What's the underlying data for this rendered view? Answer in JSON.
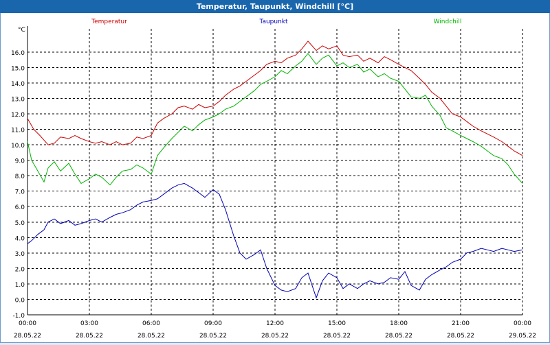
{
  "window": {
    "title": "Temperatur, Taupunkt, Windchill [°C]"
  },
  "chart_data": {
    "type": "line",
    "title": "Temperatur, Taupunkt, Windchill [°C]",
    "ylabel": "°C",
    "ylim": [
      -1.0,
      17.5
    ],
    "xlim": [
      0,
      24
    ],
    "yticks": [
      "-1.0",
      "0.0",
      "1.0",
      "2.0",
      "3.0",
      "4.0",
      "5.0",
      "6.0",
      "7.0",
      "8.0",
      "9.0",
      "10.0",
      "11.0",
      "12.0",
      "13.0",
      "14.0",
      "15.0",
      "16.0"
    ],
    "xticks": [
      {
        "time": "00:00",
        "date": "28.05.22"
      },
      {
        "time": "03:00",
        "date": "28.05.22"
      },
      {
        "time": "06:00",
        "date": "28.05.22"
      },
      {
        "time": "09:00",
        "date": "28.05.22"
      },
      {
        "time": "12:00",
        "date": "28.05.22"
      },
      {
        "time": "15:00",
        "date": "28.05.22"
      },
      {
        "time": "18:00",
        "date": "28.05.22"
      },
      {
        "time": "21:00",
        "date": "28.05.22"
      },
      {
        "time": "00:00",
        "date": "29.05.22"
      }
    ],
    "grid": true,
    "legend_position": "top",
    "series": [
      {
        "name": "Temperatur",
        "color": "#cc0000",
        "x": [
          0,
          0.3,
          0.6,
          0.8,
          1.0,
          1.3,
          1.6,
          2.0,
          2.3,
          2.6,
          3.0,
          3.3,
          3.6,
          4.0,
          4.3,
          4.6,
          5.0,
          5.3,
          5.6,
          6.0,
          6.3,
          6.6,
          7.0,
          7.3,
          7.6,
          8.0,
          8.3,
          8.6,
          9.0,
          9.3,
          9.6,
          10.0,
          10.3,
          10.6,
          11.0,
          11.3,
          11.6,
          12.0,
          12.3,
          12.6,
          13.0,
          13.3,
          13.6,
          14.0,
          14.3,
          14.6,
          15.0,
          15.3,
          15.6,
          16.0,
          16.3,
          16.6,
          17.0,
          17.3,
          17.6,
          18.0,
          18.3,
          18.6,
          19.0,
          19.3,
          19.6,
          20.0,
          20.3,
          20.6,
          21.0,
          21.3,
          21.6,
          22.0,
          22.3,
          22.6,
          23.0,
          23.3,
          23.6,
          24.0
        ],
        "values": [
          11.7,
          11.0,
          10.6,
          10.3,
          10.0,
          10.1,
          10.5,
          10.4,
          10.6,
          10.4,
          10.2,
          10.1,
          10.2,
          10.0,
          10.2,
          10.0,
          10.1,
          10.5,
          10.4,
          10.6,
          11.4,
          11.7,
          12.0,
          12.4,
          12.5,
          12.3,
          12.6,
          12.4,
          12.5,
          12.8,
          13.2,
          13.6,
          13.8,
          14.1,
          14.5,
          14.8,
          15.2,
          15.4,
          15.3,
          15.6,
          15.8,
          16.2,
          16.7,
          16.1,
          16.4,
          16.2,
          16.4,
          15.8,
          15.7,
          15.8,
          15.4,
          15.6,
          15.3,
          15.7,
          15.5,
          15.2,
          15.0,
          14.8,
          14.3,
          13.9,
          13.4,
          13.0,
          12.5,
          12.0,
          11.8,
          11.5,
          11.2,
          10.9,
          10.7,
          10.5,
          10.2,
          9.9,
          9.6,
          9.3
        ]
      },
      {
        "name": "Taupunkt",
        "color": "#0000b4",
        "x": [
          0,
          0.2,
          0.5,
          0.8,
          1.0,
          1.3,
          1.6,
          2.0,
          2.3,
          2.6,
          3.0,
          3.3,
          3.6,
          4.0,
          4.3,
          4.6,
          5.0,
          5.3,
          5.6,
          6.0,
          6.3,
          6.6,
          7.0,
          7.3,
          7.6,
          8.0,
          8.3,
          8.6,
          9.0,
          9.3,
          9.6,
          10.0,
          10.3,
          10.6,
          11.0,
          11.3,
          11.6,
          12.0,
          12.3,
          12.6,
          13.0,
          13.3,
          13.6,
          14.0,
          14.3,
          14.6,
          15.0,
          15.3,
          15.6,
          16.0,
          16.3,
          16.6,
          17.0,
          17.3,
          17.6,
          18.0,
          18.3,
          18.6,
          19.0,
          19.3,
          19.6,
          20.0,
          20.3,
          20.6,
          21.0,
          21.3,
          21.6,
          22.0,
          22.3,
          22.6,
          23.0,
          23.3,
          23.6,
          24.0
        ],
        "values": [
          3.6,
          3.8,
          4.2,
          4.5,
          5.0,
          5.2,
          4.9,
          5.1,
          4.8,
          4.9,
          5.1,
          5.2,
          5.0,
          5.3,
          5.5,
          5.6,
          5.8,
          6.1,
          6.3,
          6.4,
          6.5,
          6.8,
          7.2,
          7.4,
          7.5,
          7.2,
          6.9,
          6.6,
          7.1,
          6.8,
          5.8,
          4.1,
          3.0,
          2.6,
          2.9,
          3.2,
          2.0,
          0.9,
          0.6,
          0.5,
          0.7,
          1.4,
          1.7,
          0.1,
          1.2,
          1.7,
          1.4,
          0.7,
          1.0,
          0.7,
          1.0,
          1.2,
          1.0,
          1.1,
          1.4,
          1.3,
          1.8,
          0.9,
          0.6,
          1.3,
          1.6,
          1.9,
          2.1,
          2.4,
          2.6,
          3.0,
          3.1,
          3.3,
          3.2,
          3.1,
          3.3,
          3.2,
          3.1,
          3.2
        ]
      },
      {
        "name": "Windchill",
        "color": "#00b400",
        "x": [
          0,
          0.2,
          0.5,
          0.8,
          1.0,
          1.3,
          1.6,
          2.0,
          2.3,
          2.6,
          3.0,
          3.3,
          3.6,
          4.0,
          4.3,
          4.6,
          5.0,
          5.3,
          5.6,
          6.0,
          6.3,
          6.6,
          7.0,
          7.3,
          7.6,
          8.0,
          8.3,
          8.6,
          9.0,
          9.3,
          9.6,
          10.0,
          10.3,
          10.6,
          11.0,
          11.3,
          11.6,
          12.0,
          12.3,
          12.6,
          13.0,
          13.3,
          13.6,
          14.0,
          14.3,
          14.6,
          15.0,
          15.3,
          15.6,
          16.0,
          16.3,
          16.6,
          17.0,
          17.3,
          17.6,
          18.0,
          18.3,
          18.6,
          19.0,
          19.3,
          19.6,
          20.0,
          20.3,
          20.6,
          21.0,
          21.3,
          21.6,
          22.0,
          22.3,
          22.6,
          23.0,
          23.3,
          23.6,
          24.0
        ],
        "values": [
          10.2,
          9.0,
          8.3,
          7.6,
          8.5,
          8.9,
          8.3,
          8.8,
          8.1,
          7.5,
          7.8,
          8.1,
          7.9,
          7.4,
          7.9,
          8.3,
          8.4,
          8.7,
          8.5,
          8.1,
          9.3,
          9.8,
          10.4,
          10.8,
          11.2,
          10.9,
          11.3,
          11.6,
          11.8,
          12.0,
          12.3,
          12.5,
          12.8,
          13.1,
          13.5,
          13.9,
          14.1,
          14.4,
          14.8,
          14.6,
          15.1,
          15.4,
          15.9,
          15.2,
          15.6,
          15.8,
          15.1,
          15.3,
          15.0,
          15.2,
          14.7,
          14.9,
          14.4,
          14.6,
          14.3,
          14.1,
          13.6,
          13.1,
          13.0,
          13.2,
          12.5,
          11.9,
          11.1,
          10.9,
          10.6,
          10.4,
          10.2,
          9.9,
          9.6,
          9.3,
          9.1,
          8.7,
          8.1,
          7.5
        ]
      }
    ]
  }
}
